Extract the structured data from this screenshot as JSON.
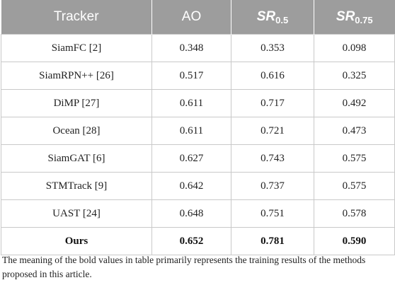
{
  "table": {
    "headers": {
      "tracker": "Tracker",
      "ao": "AO",
      "sr05_main": "SR",
      "sr05_sub": "0.5",
      "sr075_main": "SR",
      "sr075_sub": "0.75"
    },
    "rows": [
      {
        "tracker": "SiamFC [2]",
        "ao": "0.348",
        "sr05": "0.353",
        "sr075": "0.098"
      },
      {
        "tracker": "SiamRPN++ [26]",
        "ao": "0.517",
        "sr05": "0.616",
        "sr075": "0.325"
      },
      {
        "tracker": "DiMP [27]",
        "ao": "0.611",
        "sr05": "0.717",
        "sr075": "0.492"
      },
      {
        "tracker": "Ocean [28]",
        "ao": "0.611",
        "sr05": "0.721",
        "sr075": "0.473"
      },
      {
        "tracker": "SiamGAT [6]",
        "ao": "0.627",
        "sr05": "0.743",
        "sr075": "0.575"
      },
      {
        "tracker": "STMTrack [9]",
        "ao": "0.642",
        "sr05": "0.737",
        "sr075": "0.575"
      },
      {
        "tracker": "UAST [24]",
        "ao": "0.648",
        "sr05": "0.751",
        "sr075": "0.578"
      },
      {
        "tracker": "Ours",
        "ao": "0.652",
        "sr05": "0.781",
        "sr075": "0.590"
      }
    ]
  },
  "footnote": "The meaning of the bold values in table primarily represents the training results of the methods proposed in this article.",
  "colors": {
    "header_bg": "#9d9d9d",
    "header_text": "#ffffff",
    "grid": "#c9c9c9"
  }
}
